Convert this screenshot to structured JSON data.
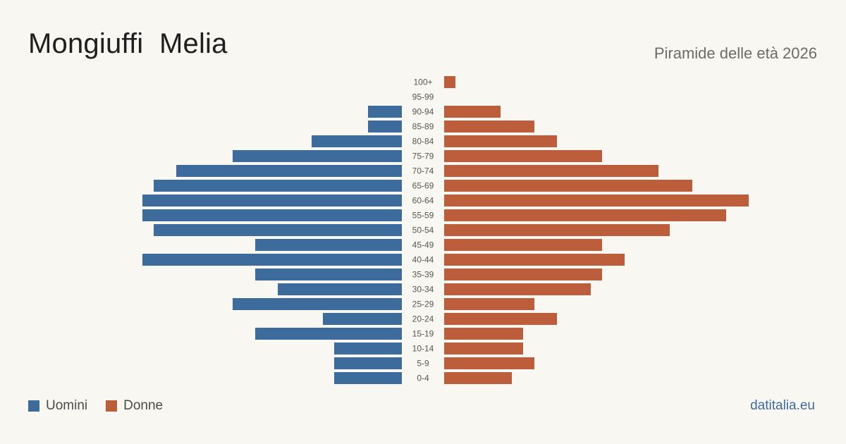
{
  "title": "Mongiuffi  Melia",
  "subtitle": "Piramide delle età 2026",
  "source": "datitalia.eu",
  "colors": {
    "men": "#3d6b9c",
    "women": "#bc5d3c",
    "background": "#f9f7f2"
  },
  "chart_data": {
    "type": "bar",
    "orientation": "horizontal-diverging",
    "categories": [
      "100+",
      "95-99",
      "90-94",
      "85-89",
      "80-84",
      "75-79",
      "70-74",
      "65-69",
      "60-64",
      "55-59",
      "50-54",
      "45-49",
      "40-44",
      "35-39",
      "30-34",
      "25-29",
      "20-24",
      "15-19",
      "10-14",
      "5-9",
      "0-4"
    ],
    "series": [
      {
        "name": "Uomini",
        "side": "left",
        "values": [
          0,
          0,
          3,
          3,
          8,
          15,
          20,
          22,
          23,
          23,
          22,
          13,
          23,
          13,
          11,
          15,
          7,
          13,
          6,
          6,
          6
        ]
      },
      {
        "name": "Donne",
        "side": "right",
        "values": [
          1,
          0,
          5,
          8,
          10,
          14,
          19,
          22,
          27,
          25,
          20,
          14,
          16,
          14,
          13,
          8,
          10,
          7,
          7,
          8,
          6
        ]
      }
    ]
  }
}
